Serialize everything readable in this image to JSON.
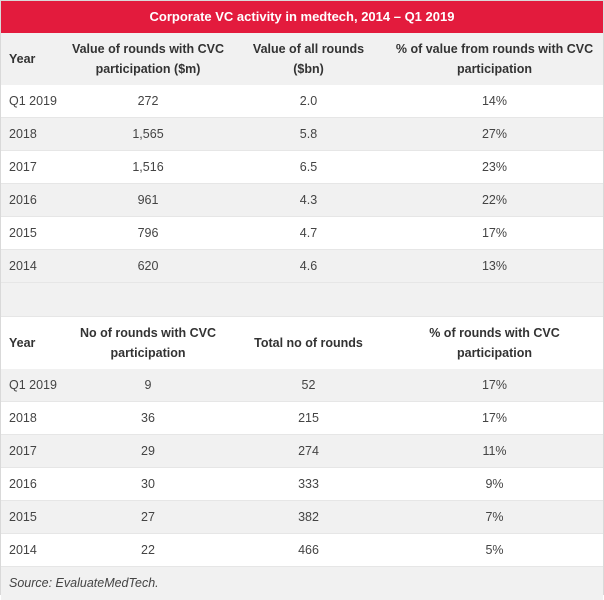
{
  "title": "Corporate VC activity in medtech, 2014 – Q1 2019",
  "table1": {
    "headers": [
      "Year",
      "Value of rounds with CVC participation ($m)",
      "Value of all rounds ($bn)",
      "% of value from rounds with CVC participation"
    ],
    "rows": [
      [
        "Q1 2019",
        "272",
        "2.0",
        "14%"
      ],
      [
        "2018",
        "1,565",
        "5.8",
        "27%"
      ],
      [
        "2017",
        "1,516",
        "6.5",
        "23%"
      ],
      [
        "2016",
        "961",
        "4.3",
        "22%"
      ],
      [
        "2015",
        "796",
        "4.7",
        "17%"
      ],
      [
        "2014",
        "620",
        "4.6",
        "13%"
      ]
    ]
  },
  "table2": {
    "headers": [
      "Year",
      "No of rounds with CVC participation",
      "Total no of rounds",
      "% of rounds with CVC participation"
    ],
    "rows": [
      [
        "Q1 2019",
        "9",
        "52",
        "17%"
      ],
      [
        "2018",
        "36",
        "215",
        "17%"
      ],
      [
        "2017",
        "29",
        "274",
        "11%"
      ],
      [
        "2016",
        "30",
        "333",
        "9%"
      ],
      [
        "2015",
        "27",
        "382",
        "7%"
      ],
      [
        "2014",
        "22",
        "466",
        "5%"
      ]
    ]
  },
  "source": "Source: EvaluateMedTech."
}
